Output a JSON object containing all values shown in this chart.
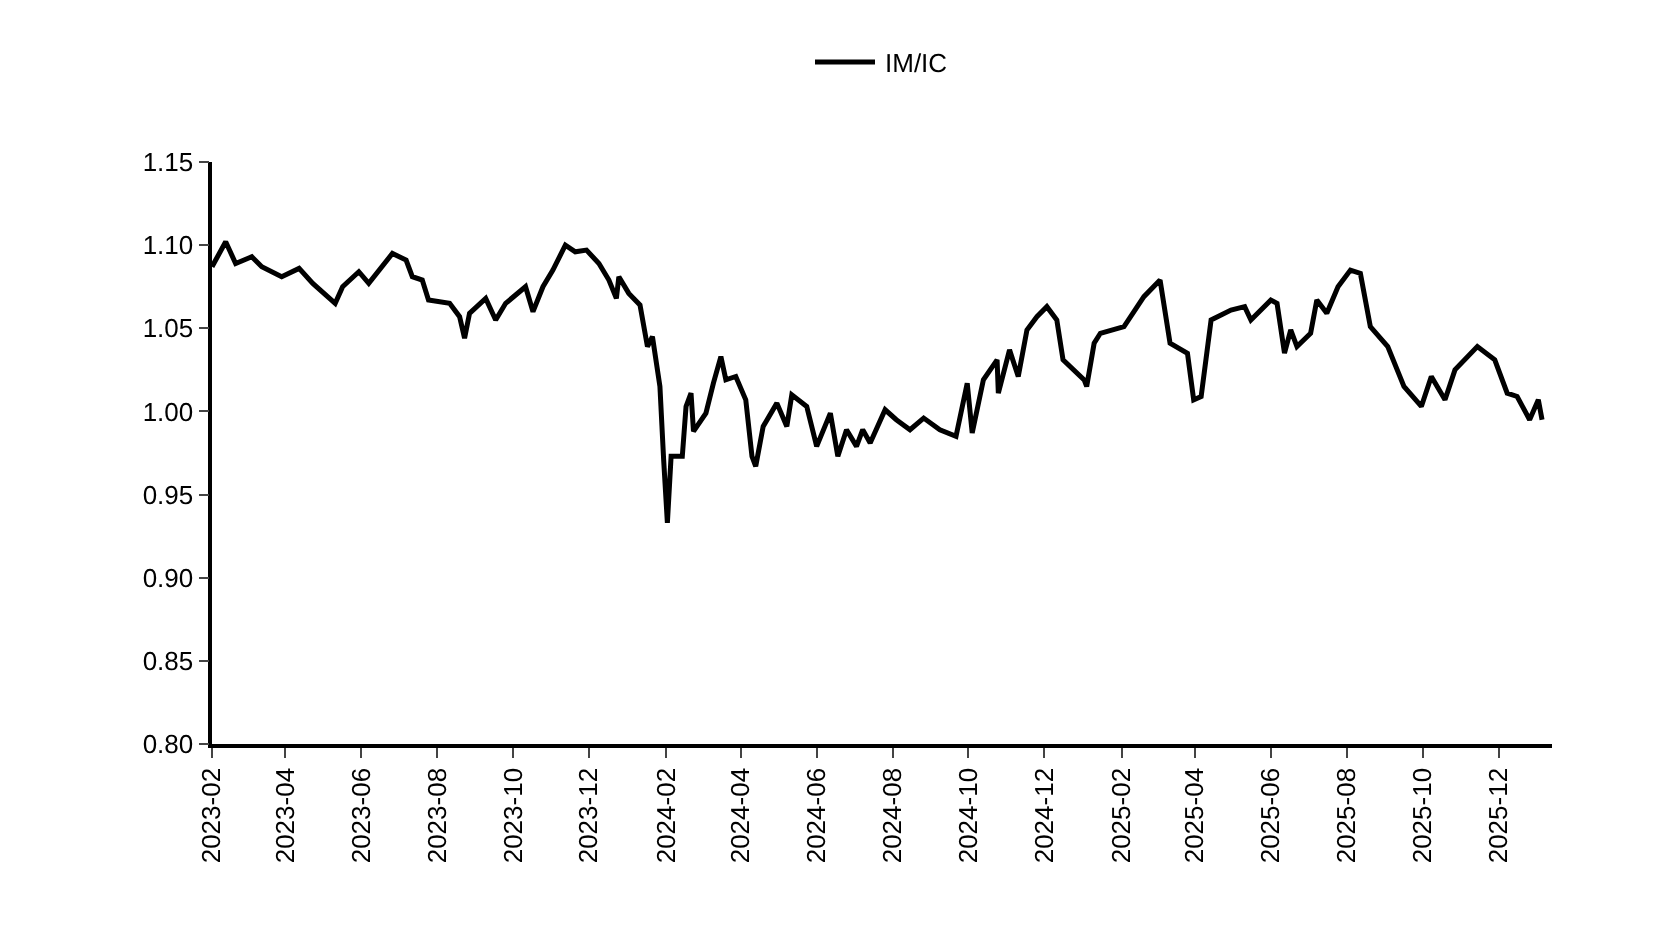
{
  "chart_data": {
    "type": "line",
    "legend": "top",
    "grid": false,
    "marker": "none",
    "line_style": "solid",
    "xlim": [
      "2023-02-01",
      "2026-01-13"
    ],
    "xticks": [
      "2023-02",
      "2023-04",
      "2023-06",
      "2023-08",
      "2023-10",
      "2023-12",
      "2024-02",
      "2024-04",
      "2024-06",
      "2024-08",
      "2024-10",
      "2024-12",
      "2025-02",
      "2025-04",
      "2025-06",
      "2025-08",
      "2025-10",
      "2025-12"
    ],
    "ylim": [
      0.8,
      1.15
    ],
    "yticks": [
      {
        "value": 0.8,
        "label": "0.80"
      },
      {
        "value": 0.85,
        "label": "0.85"
      },
      {
        "value": 0.9,
        "label": "0.90"
      },
      {
        "value": 0.95,
        "label": "0.95"
      },
      {
        "value": 1.0,
        "label": "1.00"
      },
      {
        "value": 1.05,
        "label": "1.05"
      },
      {
        "value": 1.1,
        "label": "1.10"
      },
      {
        "value": 1.15,
        "label": "1.15"
      }
    ],
    "series": [
      {
        "name": "IM/IC",
        "color": "#000000",
        "x": [
          "2023-02-01",
          "2023-02-12",
          "2023-02-20",
          "2023-03-05",
          "2023-03-13",
          "2023-03-29",
          "2023-04-12",
          "2023-04-23",
          "2023-05-11",
          "2023-05-17",
          "2023-05-30",
          "2023-06-07",
          "2023-06-26",
          "2023-07-07",
          "2023-07-12",
          "2023-07-20",
          "2023-07-25",
          "2023-08-11",
          "2023-08-19",
          "2023-08-23",
          "2023-08-27",
          "2023-09-09",
          "2023-09-17",
          "2023-09-25",
          "2023-10-11",
          "2023-10-17",
          "2023-10-25",
          "2023-11-02",
          "2023-11-12",
          "2023-11-20",
          "2023-11-29",
          "2023-12-09",
          "2023-12-17",
          "2023-12-23",
          "2023-12-25",
          "2024-01-02",
          "2024-01-11",
          "2024-01-17",
          "2024-01-21",
          "2024-01-27",
          "2024-01-30",
          "2024-02-02",
          "2024-02-05",
          "2024-02-14",
          "2024-02-17",
          "2024-02-21",
          "2024-02-23",
          "2024-03-04",
          "2024-03-10",
          "2024-03-16",
          "2024-03-20",
          "2024-03-28",
          "2024-04-05",
          "2024-04-10",
          "2024-04-13",
          "2024-04-19",
          "2024-04-30",
          "2024-05-08",
          "2024-05-12",
          "2024-05-24",
          "2024-06-01",
          "2024-06-12",
          "2024-06-18",
          "2024-06-25",
          "2024-07-03",
          "2024-07-08",
          "2024-07-14",
          "2024-07-26",
          "2024-08-04",
          "2024-08-15",
          "2024-08-26",
          "2024-09-08",
          "2024-09-21",
          "2024-09-30",
          "2024-10-04",
          "2024-10-13",
          "2024-10-24",
          "2024-10-25",
          "2024-11-03",
          "2024-11-10",
          "2024-11-17",
          "2024-11-25",
          "2024-12-03",
          "2024-12-11",
          "2024-12-16",
          "2025-01-02",
          "2025-01-04",
          "2025-01-10",
          "2025-01-15",
          "2025-02-03",
          "2025-02-19",
          "2025-03-04",
          "2025-03-12",
          "2025-03-26",
          "2025-03-31",
          "2025-04-06",
          "2025-04-14",
          "2025-04-30",
          "2025-05-11",
          "2025-05-16",
          "2025-06-01",
          "2025-06-06",
          "2025-06-12",
          "2025-06-17",
          "2025-06-22",
          "2025-07-03",
          "2025-07-08",
          "2025-07-16",
          "2025-07-25",
          "2025-08-04",
          "2025-08-12",
          "2025-08-20",
          "2025-09-03",
          "2025-09-16",
          "2025-09-30",
          "2025-10-08",
          "2025-10-19",
          "2025-10-27",
          "2025-11-14",
          "2025-11-28",
          "2025-12-08",
          "2025-12-16",
          "2025-12-26",
          "2026-01-02",
          "2026-01-05"
        ],
        "values": [
          1.087,
          1.102,
          1.089,
          1.093,
          1.087,
          1.081,
          1.086,
          1.077,
          1.065,
          1.075,
          1.084,
          1.077,
          1.095,
          1.091,
          1.081,
          1.079,
          1.067,
          1.065,
          1.057,
          1.044,
          1.059,
          1.068,
          1.055,
          1.065,
          1.075,
          1.06,
          1.075,
          1.085,
          1.1,
          1.096,
          1.097,
          1.089,
          1.079,
          1.068,
          1.081,
          1.071,
          1.064,
          1.039,
          1.045,
          1.015,
          0.971,
          0.933,
          0.973,
          0.973,
          1.003,
          1.011,
          0.988,
          0.999,
          1.017,
          1.033,
          1.019,
          1.021,
          1.007,
          0.973,
          0.967,
          0.991,
          1.005,
          0.991,
          1.01,
          1.003,
          0.979,
          0.999,
          0.973,
          0.989,
          0.979,
          0.989,
          0.981,
          1.001,
          0.995,
          0.989,
          0.996,
          0.989,
          0.985,
          1.017,
          0.987,
          1.019,
          1.031,
          1.011,
          1.037,
          1.021,
          1.049,
          1.057,
          1.063,
          1.055,
          1.031,
          1.019,
          1.015,
          1.041,
          1.047,
          1.051,
          1.069,
          1.079,
          1.041,
          1.035,
          1.007,
          1.009,
          1.055,
          1.061,
          1.063,
          1.055,
          1.067,
          1.065,
          1.035,
          1.049,
          1.039,
          1.047,
          1.067,
          1.059,
          1.075,
          1.085,
          1.083,
          1.051,
          1.039,
          1.015,
          1.003,
          1.021,
          1.007,
          1.025,
          1.039,
          1.031,
          1.011,
          1.009,
          0.995,
          1.007,
          0.995
        ]
      }
    ]
  }
}
